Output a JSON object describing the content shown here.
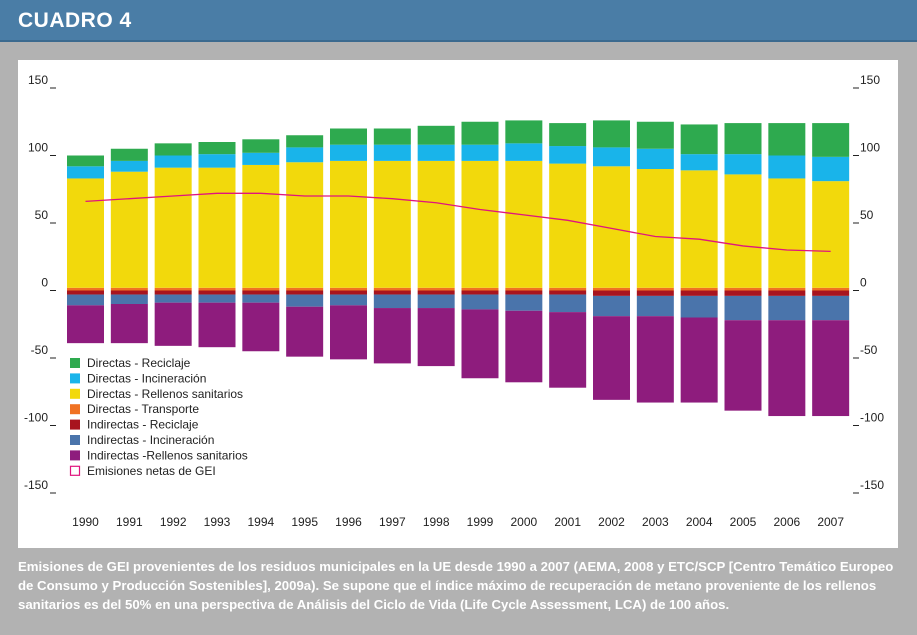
{
  "header": {
    "title": "CUADRO 4"
  },
  "caption": "Emisiones de GEI provenientes de los residuos municipales en la UE desde 1990 a 2007 (AEMA, 2008 y ETC/SCP [Centro Temático Europeo de Consumo y Producción Sostenibles], 2009a). Se supone que el índice máximo de recuperación de metano proveniente de los rellenos sanitarios es del 50% en una perspectiva de Análisis del Ciclo de Vida (Life Cycle Assessment, LCA) de 100 años.",
  "chart_data": {
    "type": "bar",
    "stacked": true,
    "title": "",
    "xlabel": "",
    "ylabel": "",
    "ylim": [
      -150,
      150
    ],
    "yticks": [
      150,
      100,
      50,
      0,
      -50,
      -100,
      -150
    ],
    "grid": false,
    "legend_position": "bottom-left",
    "categories": [
      "1990",
      "1991",
      "1992",
      "1993",
      "1994",
      "1995",
      "1996",
      "1997",
      "1998",
      "1999",
      "2000",
      "2001",
      "2002",
      "2003",
      "2004",
      "2005",
      "2006",
      "2007"
    ],
    "series": [
      {
        "name": "Directas - Reciclaje",
        "color": "#2eaa4f",
        "values": [
          8,
          9,
          9,
          9,
          10,
          9,
          12,
          12,
          14,
          17,
          17,
          17,
          20,
          20,
          22,
          23,
          24,
          25
        ]
      },
      {
        "name": "Directas - Incineración",
        "color": "#19b4ea",
        "values": [
          9,
          8,
          9,
          10,
          9,
          11,
          12,
          12,
          12,
          12,
          13,
          13,
          14,
          15,
          12,
          15,
          17,
          18
        ]
      },
      {
        "name": "Directas - Rellenos sanitarios",
        "color": "#f2d90c",
        "values": [
          81,
          86,
          89,
          89,
          91,
          93,
          94,
          94,
          94,
          94,
          94,
          92,
          90,
          88,
          87,
          84,
          81,
          79
        ]
      },
      {
        "name": "Directas - Transporte",
        "color": "#f07222",
        "values": [
          2,
          2,
          2,
          2,
          2,
          2,
          2,
          2,
          2,
          2,
          2,
          2,
          2,
          2,
          2,
          2,
          2,
          2
        ]
      },
      {
        "name": "Indirectas - Reciclaje",
        "color": "#a8141e",
        "values": [
          -3,
          -3,
          -3,
          -3,
          -3,
          -3,
          -3,
          -3,
          -3,
          -3,
          -3,
          -3,
          -4,
          -4,
          -4,
          -4,
          -4,
          -4
        ]
      },
      {
        "name": "Indirectas - Incineración",
        "color": "#4a74ab",
        "values": [
          -8,
          -7,
          -6,
          -6,
          -6,
          -9,
          -8,
          -10,
          -10,
          -11,
          -12,
          -13,
          -15,
          -15,
          -16,
          -18,
          -18,
          -18
        ]
      },
      {
        "name": "Indirectas -Rellenos sanitarios",
        "color": "#8e1c7d",
        "values": [
          -28,
          -29,
          -32,
          -33,
          -36,
          -37,
          -40,
          -41,
          -43,
          -51,
          -53,
          -56,
          -62,
          -64,
          -63,
          -67,
          -71,
          -71
        ]
      }
    ],
    "line_series": {
      "name": "Emisiones netas de GEI",
      "color": "#e0147e",
      "values": [
        66,
        68,
        70,
        72,
        72,
        70,
        70,
        68,
        65,
        60,
        56,
        52,
        46,
        40,
        38,
        33,
        30,
        29
      ]
    }
  }
}
